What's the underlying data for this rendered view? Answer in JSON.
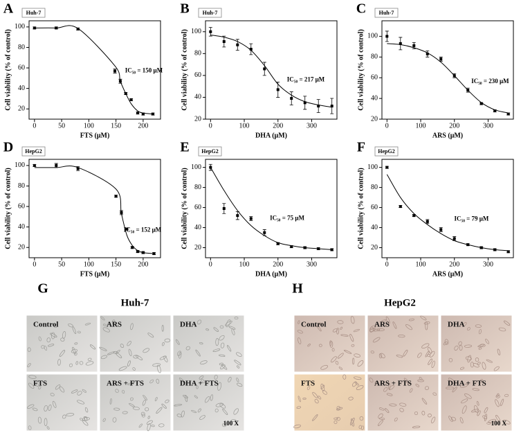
{
  "chart_data": [
    {
      "type": "scatter",
      "panel": "A",
      "cell_line": "Huh-7",
      "annotation": "IC₅₀ = 150 μM",
      "xlabel": "FTS (μM)",
      "ylabel": "Cell viability (% of control)",
      "x": [
        0,
        40,
        80,
        148,
        158,
        168,
        178,
        190,
        200,
        218
      ],
      "series": [
        {
          "color": "#000000",
          "values": [
            99,
            99,
            98,
            57,
            47,
            35,
            29,
            16,
            15,
            15
          ],
          "errors": [
            1,
            1,
            1,
            2,
            2,
            1,
            1,
            1,
            1,
            1
          ]
        },
        {
          "color": "#000000",
          "values": [
            99,
            99,
            98.5,
            62,
            47,
            35,
            25,
            18,
            16,
            15
          ]
        }
      ],
      "xlim": [
        -10,
        232
      ],
      "ylim": [
        10,
        106
      ],
      "xticks": [
        0,
        50,
        100,
        150,
        200
      ],
      "yticks": [
        20,
        40,
        60,
        80,
        100
      ]
    },
    {
      "type": "scatter",
      "panel": "B",
      "cell_line": "Huh-7",
      "annotation": "IC₅₀ = 217 μM",
      "xlabel": "DHA (μM)",
      "ylabel": "Cell viability (% of control)",
      "x": [
        0,
        40,
        80,
        120,
        160,
        200,
        240,
        280,
        320,
        360
      ],
      "series": [
        {
          "color": "#000000",
          "values": [
            100,
            91,
            88,
            84,
            66,
            47,
            39,
            35,
            32,
            32
          ],
          "errors": [
            4,
            5,
            5,
            5,
            6,
            7,
            6,
            6,
            6,
            7
          ]
        },
        {
          "color": "#000000",
          "values": [
            97,
            95,
            91,
            83,
            69,
            52,
            42,
            36,
            33,
            31
          ]
        }
      ],
      "xlim": [
        -15,
        375
      ],
      "ylim": [
        20,
        110
      ],
      "xticks": [
        0,
        100,
        200,
        300
      ],
      "yticks": [
        20,
        40,
        60,
        80,
        100
      ]
    },
    {
      "type": "scatter",
      "panel": "C",
      "cell_line": "Huh-7",
      "annotation": "IC₅₀ = 230 μM",
      "xlabel": "ARS (μM)",
      "ylabel": "Cell viability (% of control)",
      "x": [
        0,
        40,
        80,
        120,
        160,
        200,
        240,
        280,
        320,
        360
      ],
      "series": [
        {
          "color": "#000000",
          "values": [
            100,
            93,
            91,
            83,
            78,
            62,
            48,
            35,
            28,
            25
          ],
          "errors": [
            5,
            6,
            3,
            3,
            2,
            2,
            2,
            1,
            1,
            1
          ]
        },
        {
          "color": "#000000",
          "values": [
            93,
            92,
            89,
            84,
            75,
            62,
            48,
            36,
            29,
            26
          ]
        }
      ],
      "xlim": [
        -15,
        375
      ],
      "ylim": [
        20,
        115
      ],
      "xticks": [
        0,
        100,
        200,
        300
      ],
      "yticks": [
        20,
        40,
        60,
        80,
        100
      ]
    },
    {
      "type": "scatter",
      "panel": "D",
      "cell_line": "HepG2",
      "annotation": "IC₅₀ = 152 μM",
      "xlabel": "FTS (μM)",
      "ylabel": "Cell viability (% of control)",
      "x": [
        0,
        40,
        80,
        150,
        160,
        170,
        180,
        190,
        200,
        220
      ],
      "series": [
        {
          "color": "#000000",
          "values": [
            100,
            100,
            97,
            70,
            54,
            38,
            20,
            16,
            15,
            14
          ],
          "errors": [
            1,
            2,
            2,
            1,
            2,
            1,
            1,
            1,
            1,
            1
          ]
        },
        {
          "color": "#000000",
          "values": [
            98,
            98,
            98,
            77,
            53,
            32,
            22,
            17,
            15,
            14
          ]
        }
      ],
      "xlim": [
        -10,
        232
      ],
      "ylim": [
        10,
        106
      ],
      "xticks": [
        0,
        50,
        100,
        150,
        200
      ],
      "yticks": [
        20,
        40,
        60,
        80,
        100
      ]
    },
    {
      "type": "scatter",
      "panel": "E",
      "cell_line": "HepG2",
      "annotation": "IC₅₀ = 75 μM",
      "xlabel": "DHA (μM)",
      "ylabel": "Cell viability (% of control)",
      "x": [
        0,
        40,
        80,
        120,
        160,
        200,
        240,
        280,
        320,
        360
      ],
      "series": [
        {
          "color": "#000000",
          "values": [
            100,
            59,
            52,
            49,
            35,
            24,
            21,
            20,
            19,
            18
          ],
          "errors": [
            3,
            5,
            4,
            2,
            3,
            1,
            1,
            1,
            1,
            1
          ]
        },
        {
          "color": "#000000",
          "values": [
            100,
            77,
            57,
            42,
            32,
            25,
            22,
            20,
            19,
            18
          ]
        }
      ],
      "xlim": [
        -15,
        375
      ],
      "ylim": [
        10,
        108
      ],
      "xticks": [
        0,
        100,
        200,
        300
      ],
      "yticks": [
        20,
        40,
        60,
        80,
        100
      ]
    },
    {
      "type": "scatter",
      "panel": "F",
      "cell_line": "HepG2",
      "annotation": "IC₅₀ = 79 μM",
      "xlabel": "ARS (μM)",
      "ylabel": "Cell viability (% of control)",
      "x": [
        0,
        40,
        80,
        120,
        160,
        200,
        240,
        280,
        320,
        360
      ],
      "series": [
        {
          "color": "#000000",
          "values": [
            100,
            61,
            52,
            46,
            38,
            29,
            23,
            20,
            18,
            16
          ],
          "errors": [
            1,
            1,
            1,
            2,
            2,
            2,
            1,
            1,
            1,
            1
          ]
        },
        {
          "color": "#000000",
          "values": [
            93,
            70,
            54,
            43,
            34,
            27,
            23,
            20,
            18,
            17
          ]
        }
      ],
      "xlim": [
        -15,
        375
      ],
      "ylim": [
        10,
        108
      ],
      "xticks": [
        0,
        100,
        200,
        300
      ],
      "yticks": [
        20,
        40,
        60,
        80,
        100
      ]
    }
  ],
  "micrographs": [
    {
      "panel": "G",
      "title": "Huh-7",
      "labels": [
        "Control",
        "ARS",
        "DHA",
        "FTS",
        "ARS + FTS",
        "DHA + FTS"
      ],
      "magnification": "100 X"
    },
    {
      "panel": "H",
      "title": "HepG2",
      "labels": [
        "Control",
        "ARS",
        "DHA",
        "FTS",
        "ARS + FTS",
        "DHA + FTS"
      ],
      "magnification": "100 X"
    }
  ]
}
